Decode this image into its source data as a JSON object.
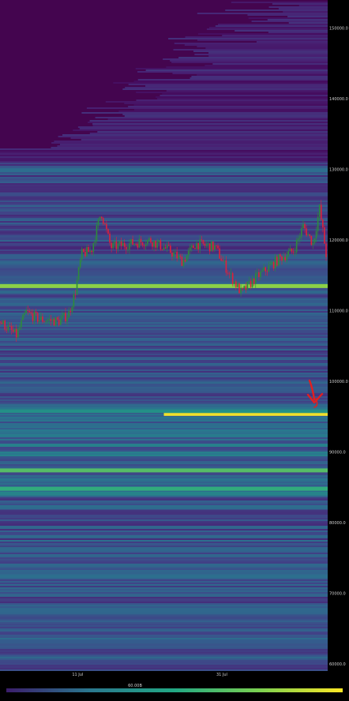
{
  "chart_data": {
    "type": "heatmap",
    "description_free": true,
    "ylim": [
      59000,
      154000
    ],
    "y_ticks": [
      {
        "value": 150000,
        "label": "150000.0"
      },
      {
        "value": 140000,
        "label": "140000.0"
      },
      {
        "value": 130000,
        "label": "130000.0"
      },
      {
        "value": 120000,
        "label": "120000.0"
      },
      {
        "value": 110000,
        "label": "110000.0"
      },
      {
        "value": 100000,
        "label": "100000.0"
      },
      {
        "value": 90000,
        "label": "90000.0"
      },
      {
        "value": 80000,
        "label": "80000.0"
      },
      {
        "value": 70000,
        "label": "70000.0"
      },
      {
        "value": 60000,
        "label": "60000.0"
      }
    ],
    "x_ticks": [
      {
        "pos": 0.237,
        "label": "11 Jul"
      },
      {
        "pos": 0.677,
        "label": "31 Jul"
      }
    ],
    "colorbar": {
      "label": "60.00B",
      "colors": [
        "#3b1d6b",
        "#2a788e",
        "#22a884",
        "#7ad151",
        "#fde725"
      ]
    },
    "price_range": [
      104500,
      125500
    ],
    "bands": [
      {
        "y": 129900,
        "intensity": 0.55,
        "x_start": 0.0
      },
      {
        "y": 126500,
        "intensity": 0.35,
        "x_start": 0.0
      },
      {
        "y": 113500,
        "intensity": 0.9,
        "x_start": 0.0
      },
      {
        "y": 95400,
        "intensity": 1.0,
        "x_start": 0.5
      },
      {
        "y": 95800,
        "intensity": 0.7,
        "x_start": 0.0
      },
      {
        "y": 93800,
        "intensity": 0.55,
        "x_start": 0.0
      },
      {
        "y": 87400,
        "intensity": 0.85,
        "x_start": 0.0
      },
      {
        "y": 84800,
        "intensity": 0.8,
        "x_start": 0.0
      },
      {
        "y": 84100,
        "intensity": 0.65,
        "x_start": 0.0
      },
      {
        "y": 82200,
        "intensity": 0.55,
        "x_start": 0.0
      },
      {
        "y": 76300,
        "intensity": 0.5,
        "x_start": 0.0
      },
      {
        "y": 72400,
        "intensity": 0.55,
        "x_start": 0.0
      },
      {
        "y": 67300,
        "intensity": 0.5,
        "x_start": 0.0
      },
      {
        "y": 63200,
        "intensity": 0.45,
        "x_start": 0.0
      }
    ],
    "annotation": {
      "type": "arrow",
      "color": "#e02020"
    }
  }
}
